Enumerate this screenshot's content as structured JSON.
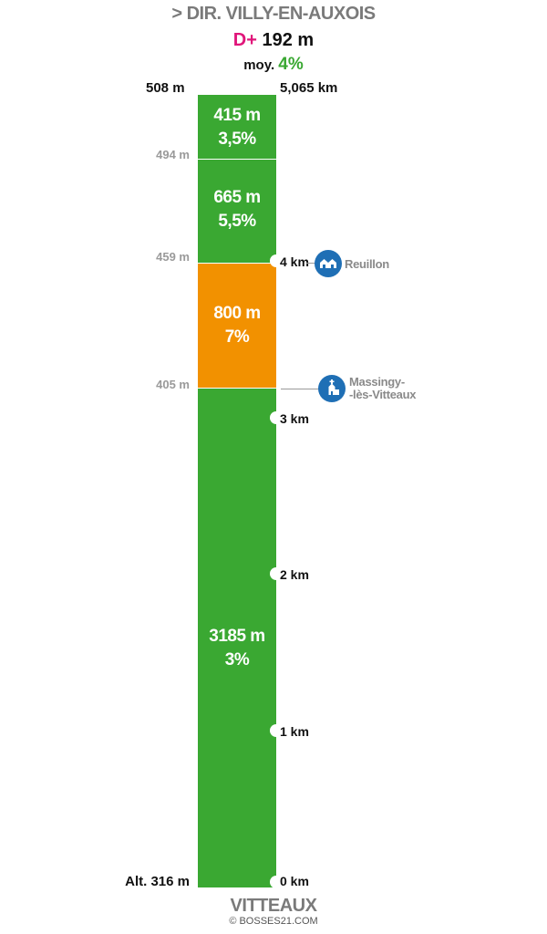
{
  "header": {
    "direction": "> DIR. VILLY-EN-AUXOIS",
    "dplus_label": "D+",
    "dplus_value": "192 m",
    "avg_label": "moy.",
    "avg_value": "4%"
  },
  "top": {
    "altitude": "508 m",
    "distance": "5,065 km"
  },
  "segments": [
    {
      "length": "415 m",
      "gradient": "3,5%",
      "color": "#3aa832"
    },
    {
      "length": "665 m",
      "gradient": "5,5%",
      "color": "#3aa832"
    },
    {
      "length": "800 m",
      "gradient": "7%",
      "color": "#f29100"
    },
    {
      "length": "3185 m",
      "gradient": "3%",
      "color": "#3aa832"
    }
  ],
  "altitude_marks": [
    "494 m",
    "459 m",
    "405 m"
  ],
  "km_marks": [
    "4 km",
    "3 km",
    "2 km",
    "1 km"
  ],
  "pois": [
    {
      "name": "Reuillon",
      "icon": "village-icon"
    },
    {
      "name_line1": "Massingy-",
      "name_line2": "-lès-Vitteaux",
      "icon": "church-icon"
    }
  ],
  "bottom": {
    "altitude": "Alt. 316 m",
    "distance": "0 km",
    "town": "VITTEAUX"
  },
  "credit": "© BOSSES21.COM"
}
